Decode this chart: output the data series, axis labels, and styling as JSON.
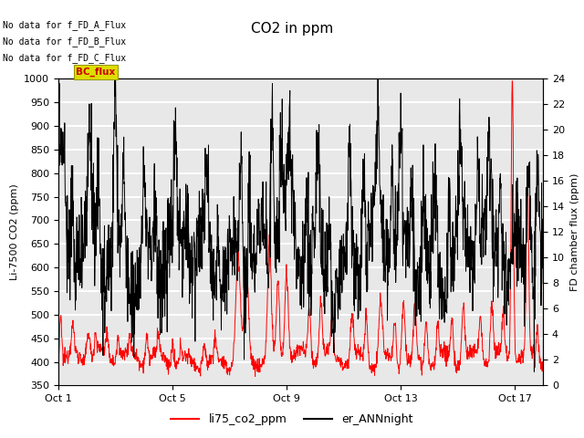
{
  "title": "CO2 in ppm",
  "ylabel_left": "Li-7500 CO2 (ppm)",
  "ylabel_right": "FD chamber flux (ppm)",
  "ylim_left": [
    350,
    1000
  ],
  "ylim_right": [
    0,
    24
  ],
  "yticks_left": [
    350,
    400,
    450,
    500,
    550,
    600,
    650,
    700,
    750,
    800,
    850,
    900,
    950,
    1000
  ],
  "yticks_right": [
    0,
    2,
    4,
    6,
    8,
    10,
    12,
    14,
    16,
    18,
    20,
    22,
    24
  ],
  "xtick_labels": [
    "Oct 1",
    "Oct 5",
    "Oct 9",
    "Oct 13",
    "Oct 17"
  ],
  "xtick_positions": [
    0,
    4,
    8,
    12,
    16
  ],
  "n_days": 17,
  "legend_labels": [
    "li75_co2_ppm",
    "er_ANNnight"
  ],
  "no_data_texts": [
    "No data for f_FD_A_Flux",
    "No data for f_FD_B_Flux",
    "No data for f_FD_C_Flux"
  ],
  "bc_flux_label": "BC_flux",
  "bc_flux_color": "#cc0000",
  "bc_flux_bg": "#dddd00",
  "background_color": "#e8e8e8",
  "grid_color": "white",
  "line_color_red": "red",
  "line_color_black": "black",
  "title_fontsize": 11,
  "axis_fontsize": 8,
  "tick_fontsize": 8,
  "legend_fontsize": 9,
  "nodata_fontsize": 7
}
